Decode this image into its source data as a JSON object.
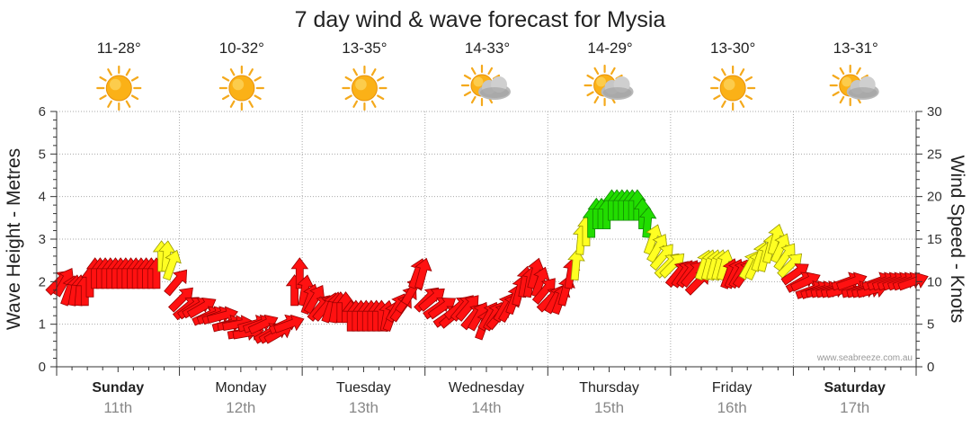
{
  "chart_data": {
    "type": "line",
    "title": "7 day wind & wave forecast for Mysia",
    "ylabel_left": "Wave Height - Metres",
    "ylabel_right": "Wind Speed - Knots",
    "ylim_left": [
      0,
      6
    ],
    "ylim_right": [
      0,
      30
    ],
    "yticks_left": [
      "0",
      "1",
      "2",
      "3",
      "4",
      "5",
      "6"
    ],
    "yticks_right": [
      "0",
      "5",
      "10",
      "15",
      "20",
      "25",
      "30"
    ],
    "grid": true,
    "watermark": "www.seabreeze.com.au",
    "days": [
      {
        "name": "Sunday",
        "date": "11th",
        "temp": "11-28°",
        "weather": "sunny",
        "bold": true
      },
      {
        "name": "Monday",
        "date": "12th",
        "temp": "10-32°",
        "weather": "sunny",
        "bold": false
      },
      {
        "name": "Tuesday",
        "date": "13th",
        "temp": "13-35°",
        "weather": "sunny",
        "bold": false
      },
      {
        "name": "Wednesday",
        "date": "14th",
        "temp": "14-33°",
        "weather": "partly-cloudy",
        "bold": false
      },
      {
        "name": "Thursday",
        "date": "15th",
        "temp": "14-29°",
        "weather": "partly-cloudy",
        "bold": false
      },
      {
        "name": "Friday",
        "date": "16th",
        "temp": "13-30°",
        "weather": "sunny",
        "bold": false
      },
      {
        "name": "Saturday",
        "date": "17th",
        "temp": "13-31°",
        "weather": "partly-cloudy",
        "bold": true
      }
    ],
    "wind_knots": [
      10,
      10,
      9,
      9,
      9,
      9,
      10,
      11,
      11,
      11,
      11,
      11,
      11,
      11,
      11,
      11,
      11,
      11,
      11,
      11,
      13,
      13,
      12,
      10,
      8,
      7,
      7,
      7,
      7,
      6,
      6,
      6,
      6,
      5,
      5,
      5,
      4,
      4,
      5,
      5,
      5,
      4,
      4,
      4,
      5,
      5,
      9,
      11,
      9,
      8,
      8,
      7,
      7,
      7,
      7,
      7,
      7,
      6,
      6,
      6,
      6,
      6,
      6,
      6,
      6,
      6,
      7,
      7,
      8,
      9,
      11,
      11,
      8,
      8,
      7,
      7,
      6,
      6,
      7,
      7,
      7,
      6,
      6,
      5,
      6,
      6,
      6,
      7,
      7,
      8,
      9,
      10,
      10,
      11,
      10,
      9,
      8,
      8,
      8,
      9,
      11,
      12,
      15,
      16,
      17,
      18,
      18,
      18,
      19,
      19,
      19,
      19,
      19,
      19,
      18,
      17,
      15,
      14,
      13,
      12,
      12,
      11,
      11,
      11,
      11,
      10,
      12,
      12,
      12,
      12,
      12,
      11,
      11,
      11,
      11,
      12,
      12,
      13,
      13,
      14,
      15,
      14,
      13,
      12,
      11,
      10,
      10,
      9,
      9,
      9,
      9,
      9,
      9,
      9,
      10,
      10,
      9,
      9,
      9,
      9,
      10,
      10,
      10,
      10,
      10,
      10,
      10,
      10
    ],
    "wind_dir_deg": [
      225,
      210,
      200,
      190,
      185,
      180,
      180,
      180,
      180,
      180,
      180,
      180,
      180,
      180,
      180,
      180,
      180,
      180,
      180,
      180,
      180,
      185,
      200,
      220,
      225,
      230,
      235,
      240,
      240,
      245,
      250,
      250,
      255,
      255,
      260,
      260,
      260,
      260,
      255,
      250,
      245,
      240,
      240,
      240,
      245,
      250,
      180,
      180,
      190,
      200,
      210,
      220,
      220,
      200,
      190,
      180,
      180,
      180,
      180,
      180,
      180,
      180,
      180,
      180,
      190,
      200,
      210,
      215,
      215,
      210,
      200,
      195,
      225,
      230,
      235,
      235,
      235,
      230,
      230,
      220,
      220,
      220,
      210,
      200,
      210,
      210,
      220,
      210,
      210,
      200,
      195,
      190,
      190,
      195,
      200,
      220,
      225,
      210,
      200,
      195,
      190,
      185,
      185,
      180,
      180,
      180,
      180,
      180,
      180,
      180,
      180,
      180,
      180,
      180,
      180,
      185,
      200,
      210,
      220,
      225,
      225,
      220,
      215,
      215,
      220,
      225,
      200,
      195,
      195,
      195,
      195,
      200,
      205,
      210,
      215,
      210,
      205,
      200,
      195,
      195,
      195,
      205,
      215,
      225,
      235,
      240,
      245,
      250,
      250,
      255,
      255,
      255,
      255,
      255,
      250,
      250,
      255,
      255,
      255,
      255,
      250,
      250,
      250,
      250,
      250,
      250,
      250,
      250
    ]
  }
}
